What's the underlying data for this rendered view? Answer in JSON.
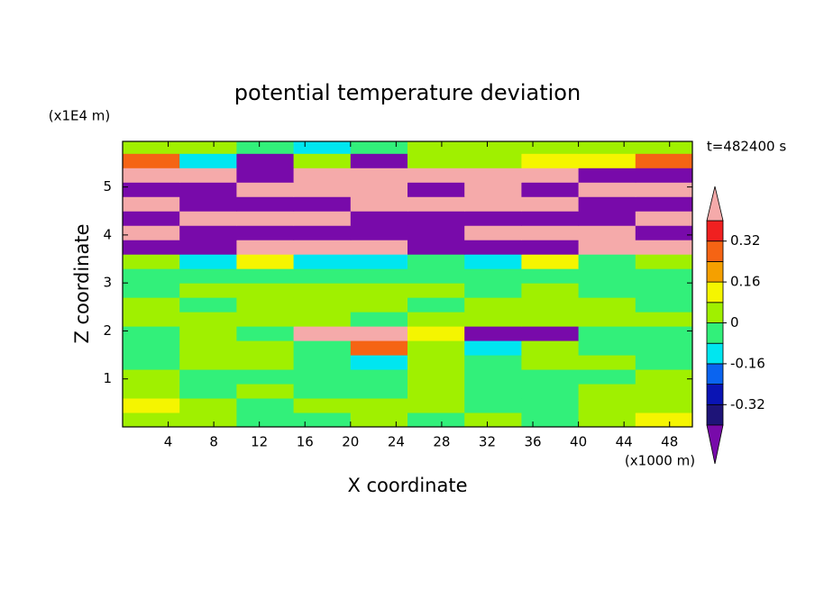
{
  "chart_data": {
    "type": "contour",
    "title": "potential temperature deviation",
    "y_unit": "(x1E4 m)",
    "x_unit": "(x1000 m)",
    "time_label": "t=482400 s",
    "xlabel": "X coordinate",
    "ylabel": "Z coordinate",
    "xlim": [
      0,
      50
    ],
    "ylim": [
      0,
      5.95
    ],
    "xticks": [
      4,
      8,
      12,
      16,
      20,
      24,
      28,
      32,
      36,
      40,
      44,
      48
    ],
    "yticks": [
      1,
      2,
      3,
      4,
      5
    ],
    "levels": [
      -0.4,
      -0.32,
      -0.24,
      -0.16,
      -0.08,
      0,
      0.08,
      0.16,
      0.24,
      0.32,
      0.4
    ],
    "colorbar_ticks": [
      -0.32,
      -0.16,
      0,
      0.16,
      0.32
    ],
    "colors": [
      "#780aaa",
      "#1e1478",
      "#0a14b4",
      "#0a64f0",
      "#00e6f0",
      "#32f07a",
      "#a0f000",
      "#f5f500",
      "#f5a000",
      "#f56414",
      "#f02020",
      "#f5aaaa"
    ],
    "x": [
      2.5,
      7.5,
      12.5,
      17.5,
      22.5,
      27.5,
      32.5,
      37.5,
      42.5,
      47.5
    ],
    "y": [
      0.15,
      0.45,
      0.75,
      1.05,
      1.35,
      1.65,
      1.95,
      2.25,
      2.55,
      2.85,
      3.15,
      3.45,
      3.75,
      4.05,
      4.35,
      4.65,
      4.95,
      5.25,
      5.55,
      5.85
    ],
    "z": [
      [
        0.04,
        0.04,
        -0.04,
        -0.04,
        0.04,
        -0.04,
        0.04,
        -0.04,
        0.04,
        0.12
      ],
      [
        0.12,
        0.04,
        -0.04,
        0.04,
        0.04,
        0.04,
        -0.04,
        -0.04,
        0.04,
        0.04
      ],
      [
        0.04,
        -0.04,
        0.04,
        -0.04,
        -0.04,
        0.04,
        -0.04,
        -0.04,
        0.04,
        0.04
      ],
      [
        0.04,
        -0.04,
        -0.04,
        -0.04,
        -0.04,
        0.04,
        -0.04,
        -0.04,
        -0.04,
        0.04
      ],
      [
        -0.04,
        0.04,
        0.04,
        -0.04,
        -0.12,
        0.04,
        -0.04,
        0.04,
        0.04,
        -0.04
      ],
      [
        -0.04,
        0.04,
        0.04,
        -0.04,
        0.28,
        0.04,
        -0.12,
        0.04,
        -0.04,
        -0.04
      ],
      [
        -0.04,
        0.04,
        -0.04,
        0.5,
        0.5,
        0.12,
        -0.5,
        -0.5,
        -0.04,
        -0.04
      ],
      [
        0.04,
        0.04,
        0.04,
        0.04,
        -0.04,
        0.04,
        0.04,
        0.04,
        0.04,
        0.04
      ],
      [
        0.04,
        -0.04,
        0.04,
        0.04,
        0.04,
        -0.04,
        0.04,
        0.04,
        0.04,
        -0.04
      ],
      [
        -0.04,
        0.04,
        0.04,
        0.04,
        0.04,
        0.04,
        -0.04,
        0.04,
        -0.04,
        -0.04
      ],
      [
        -0.04,
        -0.04,
        -0.04,
        -0.04,
        -0.04,
        -0.04,
        -0.04,
        -0.04,
        -0.04,
        -0.04
      ],
      [
        0.04,
        -0.12,
        0.12,
        -0.12,
        -0.12,
        -0.04,
        -0.12,
        0.12,
        -0.04,
        0.04
      ],
      [
        -0.5,
        -0.5,
        0.5,
        0.5,
        0.5,
        -0.5,
        -0.5,
        -0.5,
        0.5,
        0.5
      ],
      [
        0.5,
        -0.5,
        -0.5,
        -0.5,
        -0.5,
        -0.5,
        0.5,
        0.5,
        0.5,
        -0.5
      ],
      [
        -0.5,
        0.5,
        0.5,
        0.5,
        -0.5,
        -0.5,
        -0.5,
        -0.5,
        -0.5,
        0.5
      ],
      [
        0.5,
        -0.5,
        -0.5,
        -0.5,
        0.5,
        0.5,
        0.5,
        0.5,
        -0.5,
        -0.5
      ],
      [
        -0.5,
        -0.5,
        0.5,
        0.5,
        0.5,
        -0.5,
        0.5,
        -0.5,
        0.5,
        0.5
      ],
      [
        0.5,
        0.5,
        -0.5,
        0.5,
        0.5,
        0.5,
        0.5,
        0.5,
        -0.5,
        -0.5
      ],
      [
        0.28,
        -0.12,
        -0.5,
        0.04,
        -0.5,
        0.04,
        0.04,
        0.12,
        0.12,
        0.28
      ],
      [
        0.04,
        0.04,
        -0.04,
        -0.12,
        -0.04,
        0.04,
        0.04,
        0.04,
        0.04,
        0.04
      ]
    ]
  }
}
